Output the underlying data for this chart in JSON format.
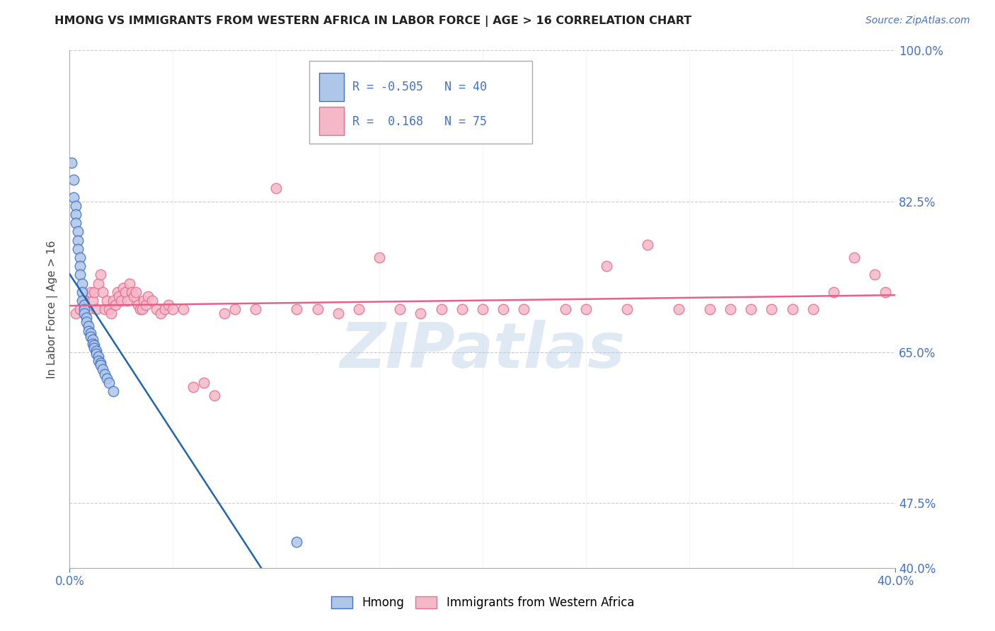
{
  "title": "HMONG VS IMMIGRANTS FROM WESTERN AFRICA IN LABOR FORCE | AGE > 16 CORRELATION CHART",
  "source": "Source: ZipAtlas.com",
  "ylabel": "In Labor Force | Age > 16",
  "xlim": [
    0.0,
    0.4
  ],
  "ylim": [
    0.4,
    1.0
  ],
  "xtick_labels_show": [
    "0.0%",
    "40.0%"
  ],
  "xtick_values_show": [
    0.0,
    0.4
  ],
  "xtick_values_grid": [
    0.0,
    0.05,
    0.1,
    0.15,
    0.2,
    0.25,
    0.3,
    0.35,
    0.4
  ],
  "ytick_labels": [
    "100.0%",
    "82.5%",
    "65.0%",
    "47.5%",
    "40.0%"
  ],
  "ytick_values": [
    1.0,
    0.825,
    0.65,
    0.475,
    0.4
  ],
  "ytick_grid_values": [
    1.0,
    0.825,
    0.65,
    0.475,
    0.4
  ],
  "grid_color": "#cccccc",
  "background_color": "#ffffff",
  "watermark": "ZIPatlas",
  "blue_color": "#aec6e8",
  "pink_color": "#f4b8c8",
  "blue_edge_color": "#4472c4",
  "pink_edge_color": "#e07090",
  "blue_line_color": "#2166ac",
  "pink_line_color": "#e8608a",
  "blue_label": "Hmong",
  "pink_label": "Immigrants from Western Africa",
  "legend_text_color": "#4472c4",
  "blue_scatter_x": [
    0.001,
    0.002,
    0.002,
    0.003,
    0.003,
    0.003,
    0.004,
    0.004,
    0.004,
    0.005,
    0.005,
    0.005,
    0.006,
    0.006,
    0.006,
    0.007,
    0.007,
    0.007,
    0.008,
    0.008,
    0.009,
    0.009,
    0.01,
    0.01,
    0.011,
    0.011,
    0.012,
    0.012,
    0.013,
    0.013,
    0.014,
    0.014,
    0.015,
    0.015,
    0.016,
    0.017,
    0.018,
    0.019,
    0.021,
    0.11
  ],
  "blue_scatter_y": [
    0.87,
    0.85,
    0.83,
    0.82,
    0.81,
    0.8,
    0.79,
    0.78,
    0.77,
    0.76,
    0.75,
    0.74,
    0.73,
    0.72,
    0.71,
    0.705,
    0.7,
    0.695,
    0.69,
    0.685,
    0.68,
    0.675,
    0.672,
    0.668,
    0.665,
    0.66,
    0.658,
    0.655,
    0.652,
    0.648,
    0.645,
    0.64,
    0.638,
    0.635,
    0.63,
    0.625,
    0.62,
    0.615,
    0.605,
    0.43
  ],
  "pink_scatter_x": [
    0.003,
    0.005,
    0.007,
    0.009,
    0.01,
    0.011,
    0.012,
    0.013,
    0.014,
    0.015,
    0.016,
    0.017,
    0.018,
    0.019,
    0.02,
    0.021,
    0.022,
    0.023,
    0.024,
    0.025,
    0.026,
    0.027,
    0.028,
    0.029,
    0.03,
    0.031,
    0.032,
    0.033,
    0.034,
    0.035,
    0.036,
    0.037,
    0.038,
    0.04,
    0.042,
    0.044,
    0.046,
    0.048,
    0.05,
    0.055,
    0.06,
    0.065,
    0.07,
    0.075,
    0.08,
    0.09,
    0.1,
    0.11,
    0.12,
    0.13,
    0.14,
    0.15,
    0.16,
    0.17,
    0.18,
    0.19,
    0.2,
    0.21,
    0.22,
    0.24,
    0.25,
    0.26,
    0.27,
    0.28,
    0.295,
    0.31,
    0.32,
    0.33,
    0.34,
    0.35,
    0.36,
    0.37,
    0.38,
    0.39,
    0.395
  ],
  "pink_scatter_y": [
    0.695,
    0.7,
    0.71,
    0.7,
    0.72,
    0.71,
    0.72,
    0.7,
    0.73,
    0.74,
    0.72,
    0.7,
    0.71,
    0.7,
    0.695,
    0.71,
    0.705,
    0.72,
    0.715,
    0.71,
    0.725,
    0.72,
    0.71,
    0.73,
    0.72,
    0.715,
    0.72,
    0.705,
    0.7,
    0.7,
    0.71,
    0.705,
    0.715,
    0.71,
    0.7,
    0.695,
    0.7,
    0.705,
    0.7,
    0.7,
    0.61,
    0.615,
    0.6,
    0.695,
    0.7,
    0.7,
    0.84,
    0.7,
    0.7,
    0.695,
    0.7,
    0.76,
    0.7,
    0.695,
    0.7,
    0.7,
    0.7,
    0.7,
    0.7,
    0.7,
    0.7,
    0.75,
    0.7,
    0.775,
    0.7,
    0.7,
    0.7,
    0.7,
    0.7,
    0.7,
    0.7,
    0.72,
    0.76,
    0.74,
    0.72
  ]
}
